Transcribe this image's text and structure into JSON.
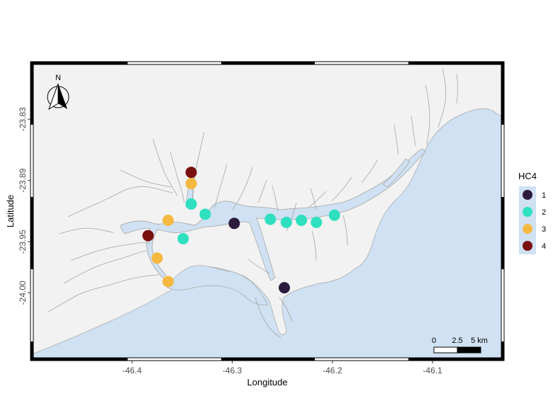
{
  "map": {
    "xlabel": "Longitude",
    "ylabel": "Latitude",
    "x_ticks": [
      {
        "value": -46.4,
        "label": "-46.4"
      },
      {
        "value": -46.3,
        "label": "-46.3"
      },
      {
        "value": -46.2,
        "label": "-46.2"
      },
      {
        "value": -46.1,
        "label": "-46.1"
      }
    ],
    "y_ticks": [
      {
        "value": -23.83,
        "label": "-23.83"
      },
      {
        "value": -23.89,
        "label": "-23.89"
      },
      {
        "value": -23.95,
        "label": "-23.95"
      },
      {
        "value": -24.0,
        "label": "-24.00"
      }
    ],
    "north_arrow_label": "N",
    "scale_bar": {
      "labels": [
        "0",
        "2.5",
        "5 km"
      ]
    },
    "colors": {
      "land": "#f2f2f2",
      "water": "#cfe1f2",
      "coast": "#a6a6a6",
      "frame": "#000000"
    }
  },
  "chart_data": {
    "type": "scatter",
    "xlabel": "Longitude",
    "ylabel": "Latitude",
    "xlim": [
      -46.5,
      -46.03
    ],
    "ylim": [
      -24.065,
      -23.775
    ],
    "legend": {
      "title": "HC4",
      "position": "right",
      "entries": [
        {
          "label": "1",
          "color": "#2d1b3d"
        },
        {
          "label": "2",
          "color": "#2fe0c0"
        },
        {
          "label": "3",
          "color": "#f5b942"
        },
        {
          "label": "4",
          "color": "#7a0f0f"
        }
      ]
    },
    "series": [
      {
        "name": "1",
        "color": "#2d1b3d",
        "points": [
          {
            "x": -46.298,
            "y": -23.932
          },
          {
            "x": -46.248,
            "y": -23.995
          }
        ]
      },
      {
        "name": "2",
        "color": "#2fe0c0",
        "points": [
          {
            "x": -46.341,
            "y": -23.913
          },
          {
            "x": -46.327,
            "y": -23.923
          },
          {
            "x": -46.349,
            "y": -23.947
          },
          {
            "x": -46.262,
            "y": -23.928
          },
          {
            "x": -46.246,
            "y": -23.931
          },
          {
            "x": -46.231,
            "y": -23.929
          },
          {
            "x": -46.216,
            "y": -23.931
          },
          {
            "x": -46.198,
            "y": -23.924
          }
        ]
      },
      {
        "name": "3",
        "color": "#f5b942",
        "points": [
          {
            "x": -46.341,
            "y": -23.893
          },
          {
            "x": -46.364,
            "y": -23.929
          },
          {
            "x": -46.375,
            "y": -23.966
          },
          {
            "x": -46.364,
            "y": -23.989
          }
        ]
      },
      {
        "name": "4",
        "color": "#7a0f0f",
        "points": [
          {
            "x": -46.341,
            "y": -23.882
          },
          {
            "x": -46.384,
            "y": -23.944
          }
        ]
      }
    ]
  }
}
